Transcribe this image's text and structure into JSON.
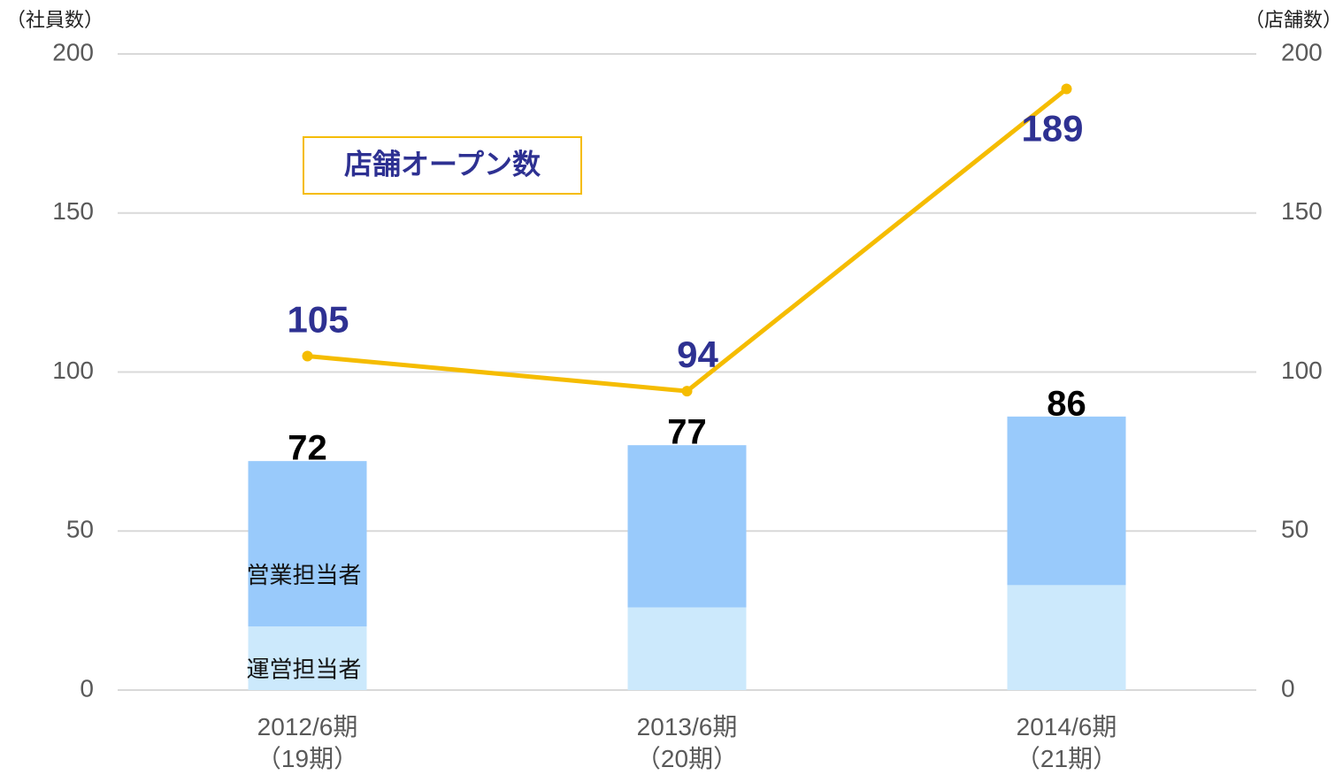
{
  "chart_data": {
    "type": "bar",
    "y_label": "（社員数）",
    "y2_label": "（店舗数）",
    "categories": [
      "2012/6期\n（19期）",
      "2013/6期\n（20期）",
      "2014/6期\n（21期）"
    ],
    "series": [
      {
        "name": "運営担当者",
        "color": "#cce9fc",
        "values": [
          20,
          26,
          33
        ]
      },
      {
        "name": "営業担当者",
        "color": "#99cafb",
        "values": [
          52,
          51,
          53
        ]
      },
      {
        "name": "店舗オープン数",
        "color": "#f5bc00",
        "type": "line",
        "axis": "y2",
        "values": [
          105,
          94,
          189
        ]
      }
    ],
    "totals": [
      72,
      77,
      86
    ],
    "ylim": [
      0,
      200
    ],
    "yticks": [
      0,
      50,
      100,
      150,
      200
    ],
    "y2lim": [
      0,
      200
    ],
    "y2ticks": [
      0,
      50,
      100,
      150,
      200
    ],
    "grid": true
  }
}
